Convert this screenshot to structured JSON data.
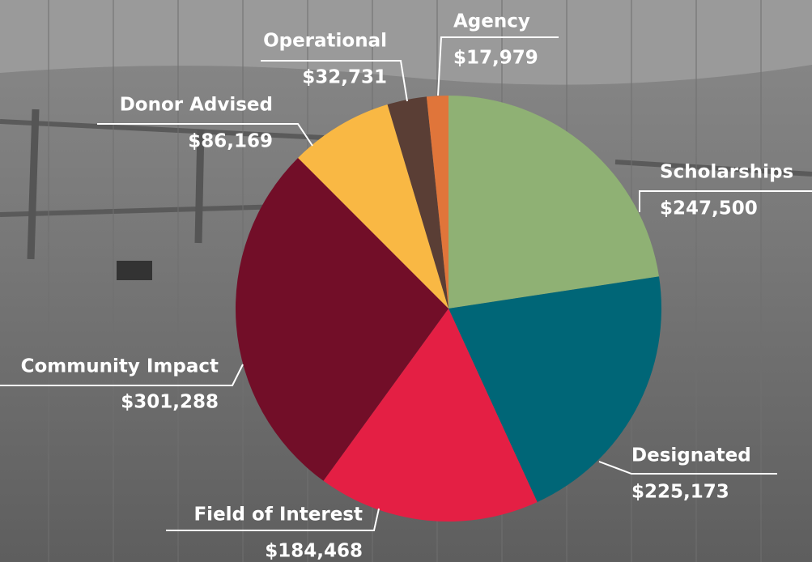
{
  "chart_data": {
    "type": "pie",
    "categories": [
      "Scholarships",
      "Designated",
      "Field of Interest",
      "Community Impact",
      "Donor Advised",
      "Operational",
      "Agency"
    ],
    "values": [
      247500,
      225173,
      184468,
      301288,
      86169,
      32731,
      17979
    ],
    "value_labels": [
      "$247,500",
      "$225,173",
      "$184,468",
      "$301,288",
      "$86,169",
      "$32,731",
      "$17,979"
    ],
    "colors": [
      "#8fb174",
      "#006677",
      "#e41f44",
      "#720e28",
      "#f9b844",
      "#5a3e35",
      "#e0753a"
    ]
  }
}
